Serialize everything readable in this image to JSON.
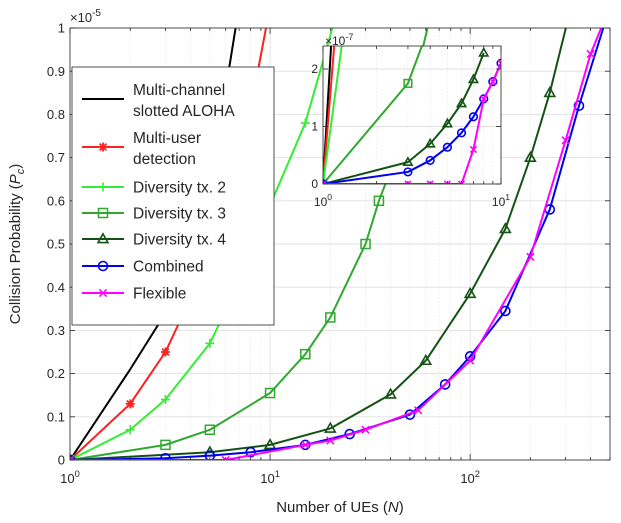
{
  "chart_data": {
    "type": "line",
    "xscale": "log",
    "xlabel": "Number of UEs (N)",
    "ylabel": "Collision Probability (P_c)",
    "xlim": [
      1,
      500
    ],
    "ylim": [
      0,
      1
    ],
    "y_multiplier": "×10^-5",
    "grid": true,
    "legend_position": "top-left",
    "x_ticks": [
      "10^0",
      "10^1",
      "10^2"
    ],
    "y_ticks": [
      "0",
      "0.1",
      "0.2",
      "0.3",
      "0.4",
      "0.5",
      "0.6",
      "0.7",
      "0.8",
      "0.9",
      "1"
    ],
    "series": [
      {
        "name": "Multi-channel slotted ALOHA",
        "color": "#000000",
        "marker": "none",
        "x": [
          1,
          2,
          3,
          5,
          7
        ],
        "y": [
          0,
          0.21,
          0.34,
          0.63,
          1.05
        ]
      },
      {
        "name": "Multi-user detection",
        "color": "#ff2020",
        "marker": "star",
        "x": [
          1,
          2,
          3,
          5,
          7,
          10
        ],
        "y": [
          0,
          0.13,
          0.25,
          0.47,
          0.67,
          1.05
        ]
      },
      {
        "name": "Diversity tx. 2",
        "color": "#33ee33",
        "marker": "plus",
        "x": [
          1,
          2,
          3,
          5,
          7,
          10,
          15,
          22
        ],
        "y": [
          0,
          0.07,
          0.14,
          0.27,
          0.41,
          0.59,
          0.78,
          1.05
        ]
      },
      {
        "name": "Diversity tx. 3",
        "color": "#2ea82e",
        "marker": "square",
        "x": [
          1,
          3,
          5,
          10,
          15,
          20,
          30,
          35,
          40,
          45,
          55,
          65
        ],
        "y": [
          0,
          0.035,
          0.07,
          0.155,
          0.245,
          0.33,
          0.5,
          0.6,
          0.67,
          0.75,
          0.91,
          1.05
        ]
      },
      {
        "name": "Diversity tx. 4",
        "color": "#145214",
        "marker": "triangle",
        "x": [
          1,
          5,
          10,
          20,
          40,
          60,
          100,
          150,
          200,
          250,
          320
        ],
        "y": [
          0,
          0.018,
          0.035,
          0.073,
          0.152,
          0.23,
          0.385,
          0.535,
          0.7,
          0.85,
          1.05
        ]
      },
      {
        "name": "Combined",
        "color": "#0000ee",
        "marker": "circle",
        "x": [
          1,
          3,
          5,
          8,
          15,
          25,
          50,
          75,
          100,
          150,
          250,
          350,
          500
        ],
        "y": [
          0,
          0.004,
          0.01,
          0.018,
          0.035,
          0.06,
          0.105,
          0.175,
          0.24,
          0.345,
          0.58,
          0.82,
          1.05
        ]
      },
      {
        "name": "Flexible",
        "color": "#ff00ff",
        "marker": "x",
        "x": [
          1,
          6,
          15,
          20,
          30,
          55,
          100,
          200,
          300,
          400,
          500
        ],
        "y": [
          0,
          0,
          0.035,
          0.045,
          0.07,
          0.115,
          0.23,
          0.47,
          0.74,
          0.94,
          1.05
        ]
      }
    ],
    "inset": {
      "xscale": "log",
      "xlim": [
        1,
        10
      ],
      "ylim": [
        0,
        2.4
      ],
      "y_multiplier": "×10^-7",
      "x_ticks": [
        "10^0",
        "10^1"
      ],
      "y_ticks": [
        "0",
        "1",
        "2"
      ],
      "series": [
        {
          "name": "Multi-channel slotted ALOHA",
          "color": "#000000",
          "marker": "none",
          "x": [
            1,
            1.12
          ],
          "y": [
            0,
            2.6
          ]
        },
        {
          "name": "Multi-user detection",
          "color": "#ff2020",
          "marker": "star",
          "x": [
            1,
            1.17
          ],
          "y": [
            0,
            2.6
          ]
        },
        {
          "name": "Diversity tx. 2",
          "color": "#33ee33",
          "marker": "plus",
          "x": [
            1,
            1.3
          ],
          "y": [
            0,
            2.6
          ]
        },
        {
          "name": "Diversity tx. 3",
          "color": "#2ea82e",
          "marker": "square",
          "x": [
            1,
            3,
            3.8
          ],
          "y": [
            0,
            1.75,
            2.6
          ]
        },
        {
          "name": "Diversity tx. 4",
          "color": "#145214",
          "marker": "triangle",
          "x": [
            1,
            3,
            4,
            5,
            6,
            7,
            8
          ],
          "y": [
            0,
            0.38,
            0.7,
            1.05,
            1.4,
            1.82,
            2.28
          ]
        },
        {
          "name": "Combined",
          "color": "#0000ee",
          "marker": "circle",
          "x": [
            1,
            3,
            4,
            5,
            6,
            7,
            8,
            9,
            10
          ],
          "y": [
            0,
            0.21,
            0.41,
            0.64,
            0.89,
            1.17,
            1.48,
            1.78,
            2.1
          ]
        },
        {
          "name": "Flexible",
          "color": "#ff00ff",
          "marker": "x",
          "x": [
            1,
            3,
            4,
            5,
            6,
            7,
            8,
            9,
            10
          ],
          "y": [
            0,
            0,
            0,
            0,
            0,
            0.6,
            1.48,
            1.78,
            2.1
          ]
        }
      ]
    }
  }
}
